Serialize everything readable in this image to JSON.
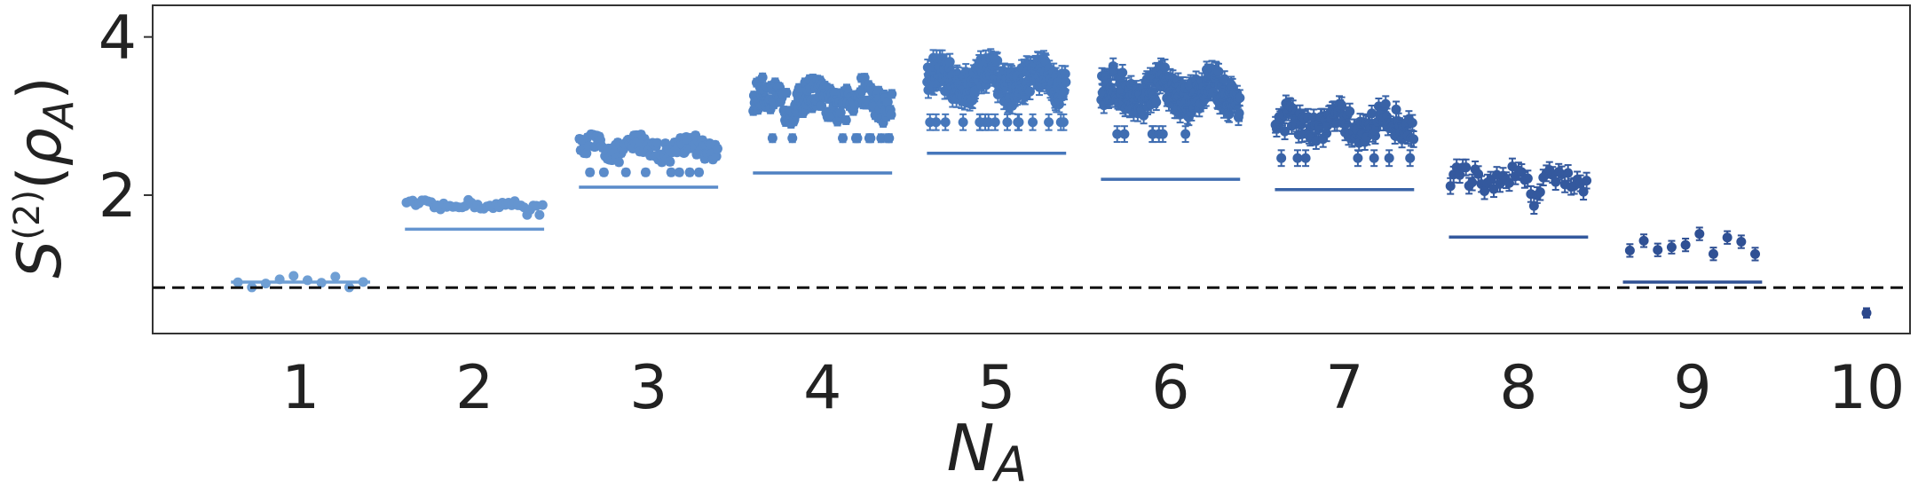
{
  "chart_data": {
    "type": "scatter",
    "title": "",
    "xlabel": "N_A",
    "ylabel": "S^(2)(ρ_A)",
    "xlabel_parts": {
      "main": "N",
      "sub": "A"
    },
    "ylabel_parts": {
      "main": "S",
      "sup": "(2)",
      "open": "(",
      "rho": "ρ",
      "sub": "A",
      "close": ")"
    },
    "xlim": [
      0.15,
      10.25
    ],
    "ylim": [
      0.25,
      4.4
    ],
    "y_ticks": [
      2,
      4
    ],
    "x_tick_labels": [
      "1",
      "2",
      "3",
      "4",
      "5",
      "6",
      "7",
      "8",
      "9",
      "10"
    ],
    "dashed_reference_y": 0.83,
    "grid": false,
    "legend": "none",
    "colors": [
      "#6f9fd4",
      "#6595d0",
      "#5a8bca",
      "#4f81c2",
      "#4677bb",
      "#3f6db1",
      "#3963a7",
      "#34599e",
      "#2f5094",
      "#2b478b"
    ],
    "groups": [
      {
        "n_a": 1,
        "n_points": 10,
        "y_base": 0.93,
        "y_spread": 0.04,
        "error_bar": 0.0,
        "baseline": 0.9,
        "baseline_halfwidth": 0.4
      },
      {
        "n_a": 2,
        "n_points": 45,
        "y_base": 1.87,
        "y_spread": 0.05,
        "error_bar": 0.0,
        "baseline": 1.57,
        "baseline_halfwidth": 0.4
      },
      {
        "n_a": 3,
        "n_points": 120,
        "y_base": 2.6,
        "y_spread": 0.13,
        "error_bar": 0.04,
        "baseline": 2.1,
        "baseline_halfwidth": 0.4
      },
      {
        "n_a": 4,
        "n_points": 210,
        "y_base": 3.2,
        "y_spread": 0.2,
        "error_bar": 0.05,
        "baseline": 2.28,
        "baseline_halfwidth": 0.4
      },
      {
        "n_a": 5,
        "n_points": 252,
        "y_base": 3.45,
        "y_spread": 0.22,
        "error_bar": 0.1,
        "baseline": 2.53,
        "baseline_halfwidth": 0.4
      },
      {
        "n_a": 6,
        "n_points": 210,
        "y_base": 3.3,
        "y_spread": 0.22,
        "error_bar": 0.1,
        "baseline": 2.2,
        "baseline_halfwidth": 0.4
      },
      {
        "n_a": 7,
        "n_points": 120,
        "y_base": 2.9,
        "y_spread": 0.18,
        "error_bar": 0.1,
        "baseline": 2.07,
        "baseline_halfwidth": 0.4
      },
      {
        "n_a": 8,
        "n_points": 45,
        "y_base": 2.2,
        "y_spread": 0.14,
        "error_bar": 0.1,
        "baseline": 1.47,
        "baseline_halfwidth": 0.4
      },
      {
        "n_a": 9,
        "n_points": 10,
        "y_base": 1.4,
        "y_spread": 0.12,
        "error_bar": 0.08,
        "baseline": 0.9,
        "baseline_halfwidth": 0.4
      },
      {
        "n_a": 10,
        "n_points": 1,
        "y_base": 0.51,
        "y_spread": 0.0,
        "error_bar": 0.06,
        "baseline": null,
        "baseline_halfwidth": 0.4
      }
    ]
  }
}
